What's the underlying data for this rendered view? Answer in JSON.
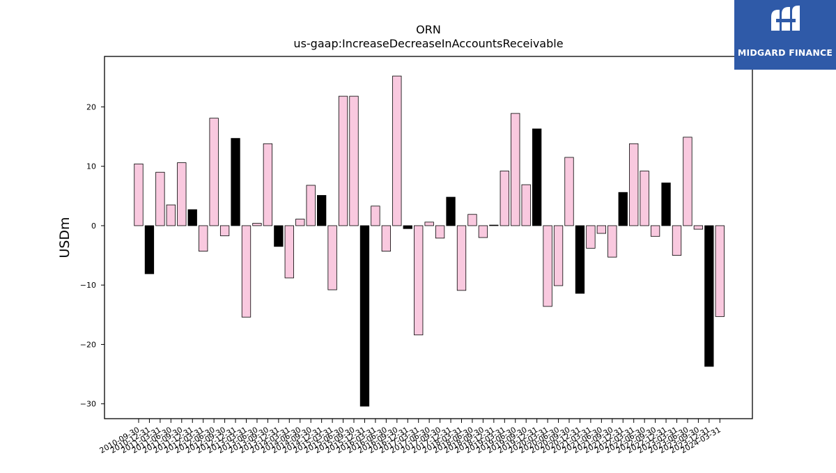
{
  "brand": {
    "name": "MIDGARD FINANCE",
    "color": "#2f5aa8"
  },
  "chart_data": {
    "type": "bar",
    "title": "ORN",
    "subtitle": "us-gaap:IncreaseDecreaseInAccountsReceivable",
    "ylabel": "USDm",
    "xlabel": "",
    "ylim": [
      -32.5,
      28.5
    ],
    "yticks": [
      -30,
      -20,
      -10,
      0,
      10,
      20
    ],
    "grid": false,
    "colors": {
      "quarter": "#f9c9df",
      "year_end": "#000000",
      "edge": "#000000"
    },
    "categories": [
      "2010-09-30",
      "2010-12-31",
      "2011-03-31",
      "2011-06-30",
      "2011-09-30",
      "2011-12-31",
      "2012-03-31",
      "2012-06-30",
      "2012-09-30",
      "2012-12-31",
      "2013-03-31",
      "2013-06-30",
      "2013-09-30",
      "2013-12-31",
      "2014-03-31",
      "2014-06-30",
      "2014-09-30",
      "2014-12-31",
      "2015-03-31",
      "2015-06-30",
      "2015-09-30",
      "2015-12-31",
      "2016-03-31",
      "2016-06-30",
      "2016-09-30",
      "2016-12-31",
      "2017-03-31",
      "2017-06-30",
      "2017-09-30",
      "2017-12-31",
      "2018-03-31",
      "2018-06-30",
      "2018-09-30",
      "2018-12-31",
      "2019-03-31",
      "2019-06-30",
      "2019-09-30",
      "2019-12-31",
      "2020-03-31",
      "2020-06-30",
      "2020-09-30",
      "2020-12-31",
      "2021-03-31",
      "2021-06-30",
      "2021-09-30",
      "2021-12-31",
      "2022-03-31",
      "2022-06-30",
      "2022-09-30",
      "2022-12-31",
      "2023-03-31",
      "2023-06-30",
      "2023-09-30",
      "2023-12-31",
      "2024-03-31"
    ],
    "values": [
      10.4,
      -8.1,
      9.0,
      3.5,
      10.6,
      2.7,
      -4.3,
      18.1,
      -1.7,
      14.7,
      -15.4,
      0.4,
      13.8,
      -3.5,
      -8.8,
      1.1,
      6.8,
      5.1,
      -10.8,
      21.8,
      21.8,
      -30.4,
      3.3,
      -4.3,
      25.2,
      -0.5,
      -18.4,
      0.6,
      -2.1,
      4.8,
      -10.9,
      1.9,
      -2.0,
      0.1,
      9.2,
      18.9,
      6.9,
      16.3,
      -13.6,
      -10.1,
      11.5,
      -11.4,
      -3.8,
      -1.3,
      -5.3,
      5.6,
      13.8,
      9.2,
      -1.8,
      7.2,
      -5.0,
      14.9,
      -0.6,
      -23.7,
      -15.3
    ],
    "year_end": [
      false,
      true,
      false,
      false,
      false,
      true,
      false,
      false,
      false,
      true,
      false,
      false,
      false,
      true,
      false,
      false,
      false,
      true,
      false,
      false,
      false,
      true,
      false,
      false,
      false,
      true,
      false,
      false,
      false,
      true,
      false,
      false,
      false,
      true,
      false,
      false,
      false,
      true,
      false,
      false,
      false,
      true,
      false,
      false,
      false,
      true,
      false,
      false,
      false,
      true,
      false,
      false,
      false,
      true,
      false
    ]
  }
}
